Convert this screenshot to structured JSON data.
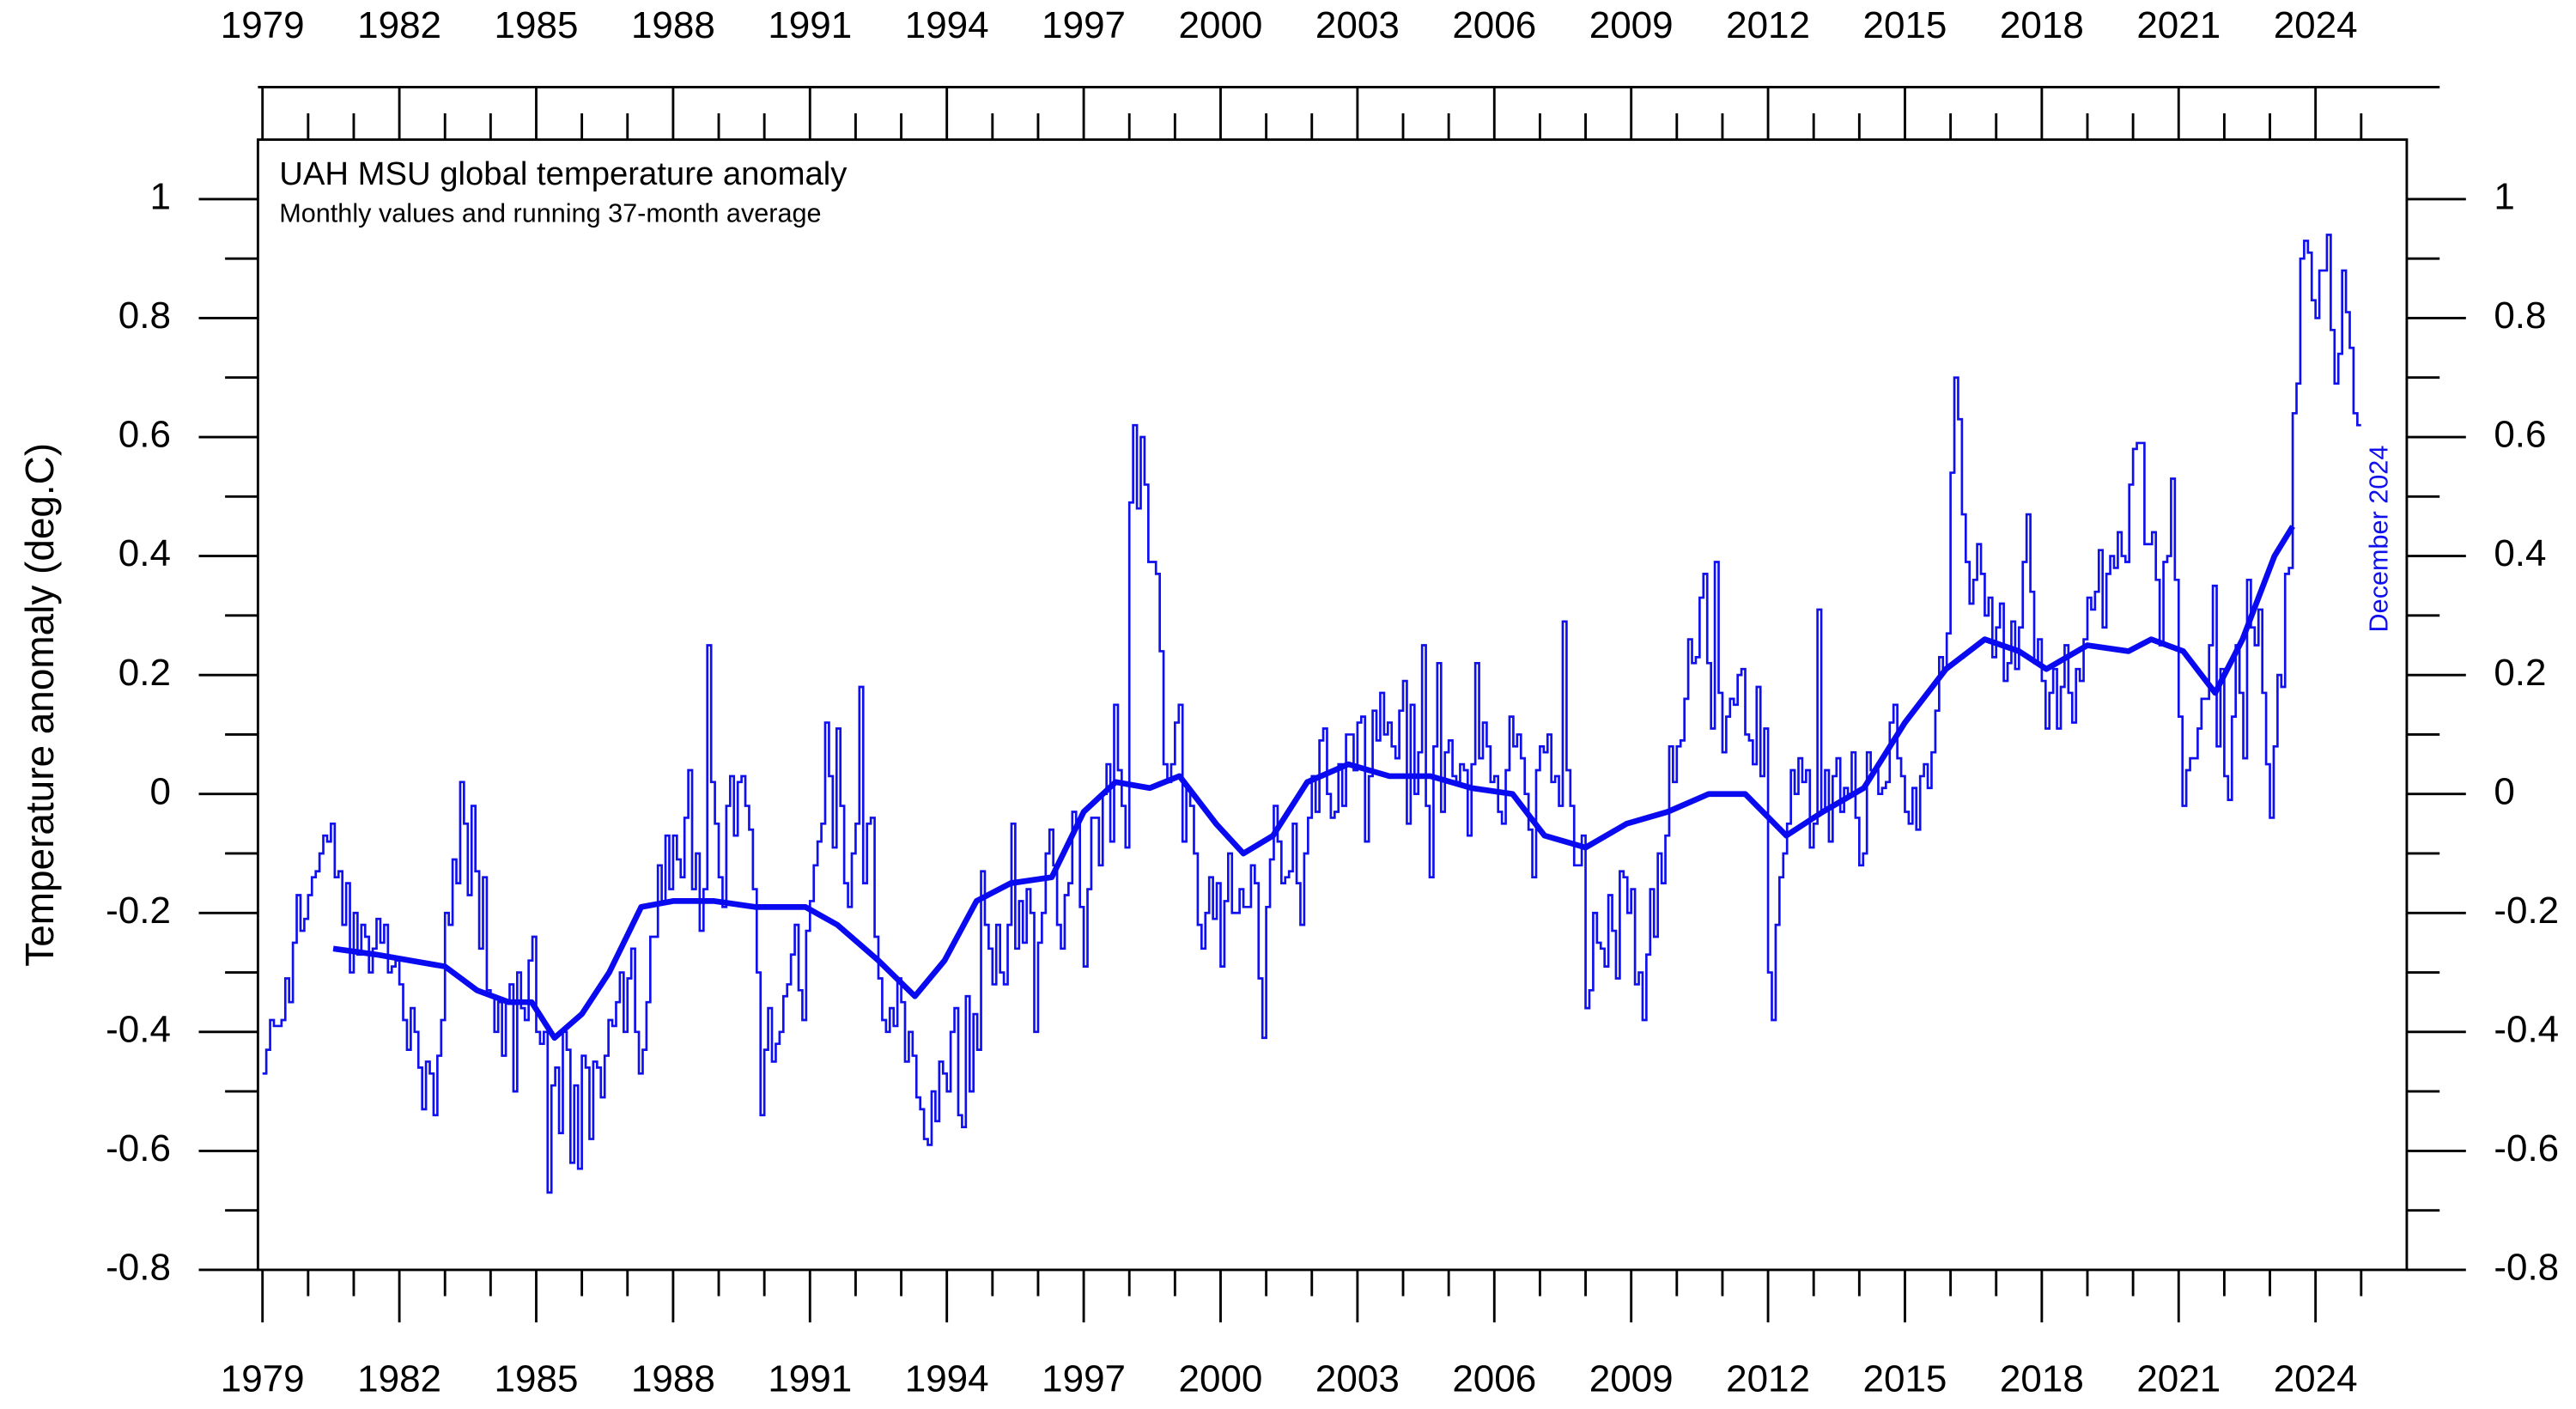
{
  "chart_data": {
    "type": "line",
    "title": "UAH MSU global temperature anomaly",
    "subtitle": "Monthly values and running 37-month average",
    "y_label": "Temperature anomaly (deg.C)",
    "annotation": "December 2024",
    "xlim": [
      1978.9,
      2026
    ],
    "xticks": [
      1979,
      1982,
      1985,
      1988,
      1991,
      1994,
      1997,
      2000,
      2003,
      2006,
      2009,
      2012,
      2015,
      2018,
      2021,
      2024
    ],
    "xticks_minor": [
      1980,
      1981,
      1983,
      1984,
      1986,
      1987,
      1989,
      1990,
      1992,
      1993,
      1995,
      1996,
      1998,
      1999,
      2001,
      2002,
      2004,
      2005,
      2007,
      2008,
      2010,
      2011,
      2013,
      2014,
      2016,
      2017,
      2019,
      2020,
      2022,
      2023,
      2025
    ],
    "ylim": [
      -0.8,
      1.1
    ],
    "yticks": [
      -0.8,
      -0.6,
      -0.4,
      -0.2,
      0,
      0.2,
      0.4,
      0.6,
      0.8,
      1
    ],
    "yticks_minor": [
      -0.7,
      -0.5,
      -0.3,
      -0.1,
      0.1,
      0.3,
      0.5,
      0.7,
      0.9
    ],
    "series": [
      {
        "color": "#1010ee",
        "years": [
          1979,
          1980,
          1981,
          1982,
          1983,
          1984,
          1985,
          1986,
          1987,
          1988,
          1989,
          1990,
          1991,
          1992,
          1993,
          1994,
          1995,
          1996,
          1997,
          1998,
          1999,
          2000,
          2001,
          2002,
          2003,
          2004,
          2005,
          2006,
          2007,
          2008,
          2009,
          2010,
          2011,
          2012,
          2013,
          2014,
          2015,
          2016,
          2017,
          2018,
          2019,
          2020,
          2021,
          2022,
          2023,
          2024
        ],
        "values": [
          [
            -0.47,
            -0.43,
            -0.38,
            -0.39,
            -0.39,
            -0.38,
            -0.31,
            -0.35,
            -0.25,
            -0.17,
            -0.23,
            -0.21
          ],
          [
            -0.17,
            -0.14,
            -0.13,
            -0.1,
            -0.07,
            -0.08,
            -0.05,
            -0.14,
            -0.13,
            -0.22,
            -0.15,
            -0.3
          ],
          [
            -0.2,
            -0.27,
            -0.22,
            -0.24,
            -0.3,
            -0.26,
            -0.21,
            -0.25,
            -0.22,
            -0.3,
            -0.29,
            -0.28
          ],
          [
            -0.32,
            -0.38,
            -0.43,
            -0.36,
            -0.4,
            -0.46,
            -0.53,
            -0.45,
            -0.47,
            -0.54,
            -0.44,
            -0.38
          ],
          [
            -0.2,
            -0.22,
            -0.11,
            -0.15,
            0.02,
            -0.05,
            -0.17,
            -0.02,
            -0.13,
            -0.26,
            -0.14,
            -0.33
          ],
          [
            -0.34,
            -0.4,
            -0.35,
            -0.44,
            -0.35,
            -0.32,
            -0.5,
            -0.3,
            -0.36,
            -0.38,
            -0.28,
            -0.24
          ],
          [
            -0.4,
            -0.42,
            -0.4,
            -0.67,
            -0.49,
            -0.46,
            -0.57,
            -0.4,
            -0.43,
            -0.62,
            -0.49,
            -0.63
          ],
          [
            -0.44,
            -0.46,
            -0.58,
            -0.45,
            -0.46,
            -0.51,
            -0.44,
            -0.38,
            -0.39,
            -0.35,
            -0.3,
            -0.4
          ],
          [
            -0.31,
            -0.26,
            -0.4,
            -0.47,
            -0.43,
            -0.35,
            -0.24,
            -0.24,
            -0.12,
            -0.18,
            -0.07,
            -0.16
          ],
          [
            -0.07,
            -0.11,
            -0.14,
            -0.04,
            0.04,
            -0.16,
            -0.1,
            -0.23,
            -0.16,
            0.25,
            0.02,
            -0.05
          ],
          [
            -0.14,
            -0.19,
            -0.02,
            0.03,
            -0.07,
            0.02,
            0.03,
            -0.02,
            -0.06,
            -0.16,
            -0.3,
            -0.54
          ],
          [
            -0.43,
            -0.36,
            -0.45,
            -0.42,
            -0.4,
            -0.34,
            -0.32,
            -0.27,
            -0.22,
            -0.33,
            -0.38,
            -0.23
          ],
          [
            -0.18,
            -0.12,
            -0.08,
            -0.05,
            0.12,
            0.03,
            -0.09,
            0.11,
            -0.02,
            -0.15,
            -0.19,
            -0.1
          ],
          [
            -0.05,
            0.18,
            -0.15,
            -0.05,
            -0.04,
            -0.24,
            -0.31,
            -0.38,
            -0.4,
            -0.36,
            -0.39,
            -0.31
          ],
          [
            -0.35,
            -0.45,
            -0.4,
            -0.44,
            -0.51,
            -0.53,
            -0.58,
            -0.59,
            -0.5,
            -0.55,
            -0.45,
            -0.47
          ],
          [
            -0.5,
            -0.4,
            -0.36,
            -0.54,
            -0.56,
            -0.34,
            -0.5,
            -0.37,
            -0.43,
            -0.13,
            -0.22,
            -0.26
          ],
          [
            -0.32,
            -0.22,
            -0.3,
            -0.32,
            -0.22,
            -0.05,
            -0.26,
            -0.18,
            -0.25,
            -0.16,
            -0.2,
            -0.4
          ],
          [
            -0.25,
            -0.2,
            -0.1,
            -0.06,
            -0.12,
            -0.22,
            -0.26,
            -0.17,
            -0.15,
            -0.03,
            -0.05,
            -0.19
          ],
          [
            -0.29,
            -0.16,
            -0.04,
            -0.04,
            -0.12,
            0.0,
            0.05,
            -0.08,
            0.15,
            0.04,
            -0.02,
            -0.09
          ],
          [
            0.49,
            0.62,
            0.48,
            0.6,
            0.52,
            0.39,
            0.39,
            0.37,
            0.24,
            0.05,
            0.02,
            0.05
          ],
          [
            0.12,
            0.15,
            -0.08,
            0.01,
            -0.02,
            -0.1,
            -0.22,
            -0.26,
            -0.2,
            -0.14,
            -0.21,
            -0.15
          ],
          [
            -0.29,
            -0.18,
            -0.1,
            -0.2,
            -0.2,
            -0.16,
            -0.19,
            -0.19,
            -0.12,
            -0.15,
            -0.31,
            -0.41
          ],
          [
            -0.19,
            -0.11,
            -0.02,
            -0.08,
            -0.15,
            -0.14,
            -0.13,
            -0.05,
            -0.15,
            -0.22,
            -0.1,
            -0.04
          ],
          [
            0.03,
            -0.03,
            0.09,
            0.11,
            0.0,
            -0.04,
            -0.03,
            0.05,
            -0.02,
            0.1,
            0.1,
            0.04
          ],
          [
            0.12,
            0.13,
            -0.08,
            0.03,
            0.14,
            0.09,
            0.17,
            0.1,
            0.12,
            0.08,
            0.06,
            0.14
          ],
          [
            0.19,
            -0.05,
            0.15,
            0.0,
            0.07,
            0.25,
            -0.02,
            -0.14,
            0.08,
            0.22,
            -0.03,
            0.07
          ],
          [
            0.09,
            0.03,
            0.02,
            0.05,
            0.04,
            -0.07,
            0.05,
            0.22,
            0.06,
            0.12,
            0.08,
            0.02
          ],
          [
            0.03,
            -0.03,
            -0.05,
            0.04,
            0.13,
            0.08,
            0.1,
            0.06,
            0.0,
            -0.06,
            -0.14,
            0.04
          ],
          [
            0.08,
            0.07,
            0.1,
            0.02,
            0.03,
            -0.02,
            0.29,
            0.04,
            -0.02,
            -0.12,
            -0.12,
            -0.07
          ],
          [
            -0.36,
            -0.33,
            -0.2,
            -0.25,
            -0.26,
            -0.29,
            -0.17,
            -0.23,
            -0.31,
            -0.13,
            -0.14,
            -0.2
          ],
          [
            -0.16,
            -0.32,
            -0.3,
            -0.38,
            -0.27,
            -0.16,
            -0.24,
            -0.1,
            -0.15,
            -0.07,
            0.08,
            0.02
          ],
          [
            0.08,
            0.09,
            0.16,
            0.26,
            0.22,
            0.23,
            0.33,
            0.37,
            0.22,
            0.11,
            0.39,
            0.17
          ],
          [
            0.07,
            0.13,
            0.16,
            0.15,
            0.2,
            0.21,
            0.1,
            0.09,
            0.05,
            0.18,
            0.03,
            0.11
          ],
          [
            -0.3,
            -0.38,
            -0.22,
            -0.14,
            -0.1,
            -0.05,
            0.04,
            0.0,
            0.06,
            0.02,
            0.04,
            -0.09
          ],
          [
            -0.05,
            0.31,
            -0.03,
            0.04,
            -0.08,
            0.03,
            0.06,
            -0.03,
            0.01,
            0.0,
            0.07,
            -0.04
          ],
          [
            -0.12,
            -0.1,
            0.07,
            0.04,
            0.04,
            0.0,
            0.01,
            0.02,
            0.12,
            0.15,
            0.06,
            0.03
          ],
          [
            -0.03,
            -0.05,
            0.01,
            -0.06,
            0.03,
            0.05,
            0.01,
            0.07,
            0.14,
            0.23,
            0.21,
            0.27
          ],
          [
            0.54,
            0.7,
            0.63,
            0.47,
            0.39,
            0.32,
            0.36,
            0.42,
            0.37,
            0.3,
            0.33,
            0.23
          ],
          [
            0.28,
            0.32,
            0.19,
            0.22,
            0.29,
            0.21,
            0.28,
            0.39,
            0.47,
            0.34,
            0.22,
            0.26
          ],
          [
            0.19,
            0.11,
            0.17,
            0.21,
            0.11,
            0.18,
            0.25,
            0.17,
            0.12,
            0.21,
            0.19,
            0.26
          ],
          [
            0.33,
            0.31,
            0.34,
            0.41,
            0.28,
            0.37,
            0.4,
            0.38,
            0.44,
            0.4,
            0.39,
            0.52
          ],
          [
            0.58,
            0.59,
            0.59,
            0.42,
            0.42,
            0.44,
            0.36,
            0.25,
            0.39,
            0.4,
            0.53,
            0.36
          ],
          [
            0.13,
            -0.02,
            0.04,
            0.06,
            0.06,
            0.11,
            0.16,
            0.16,
            0.25,
            0.35,
            0.08,
            0.21
          ],
          [
            0.03,
            -0.01,
            0.13,
            0.25,
            0.17,
            0.06,
            0.36,
            0.28,
            0.25,
            0.31,
            0.17,
            0.05
          ],
          [
            -0.04,
            0.08,
            0.2,
            0.18,
            0.37,
            0.38,
            0.64,
            0.69,
            0.9,
            0.93,
            0.91,
            0.83
          ],
          [
            0.8,
            0.88,
            0.88,
            0.94,
            0.78,
            0.69,
            0.74,
            0.88,
            0.81,
            0.75,
            0.64,
            0.62
          ]
        ]
      },
      {
        "color": "#0a0af0",
        "x": [
          1980.55,
          1981.5,
          1982.24,
          1983.0,
          1983.7,
          1984.4,
          1984.9,
          1985.4,
          1986.0,
          1986.6,
          1987.3,
          1988.0,
          1988.9,
          1989.8,
          1990.9,
          1991.6,
          1992.5,
          1993.3,
          1993.95,
          1994.65,
          1995.4,
          1996.3,
          1997.0,
          1997.7,
          1998.45,
          1999.1,
          1999.9,
          2000.5,
          2001.15,
          2001.9,
          2002.8,
          2003.7,
          2004.6,
          2005.5,
          2006.4,
          2007.1,
          2008.0,
          2008.9,
          2009.8,
          2010.7,
          2011.5,
          2012.4,
          2013.2,
          2014.1,
          2015.0,
          2015.9,
          2016.75,
          2017.5,
          2018.1,
          2019.0,
          2019.9,
          2020.4,
          2021.1,
          2021.8,
          2022.4,
          2023.1,
          2023.5
        ],
        "values": [
          -0.26,
          -0.27,
          -0.28,
          -0.29,
          -0.33,
          -0.35,
          -0.35,
          -0.41,
          -0.37,
          -0.3,
          -0.19,
          -0.18,
          -0.18,
          -0.19,
          -0.19,
          -0.22,
          -0.28,
          -0.34,
          -0.28,
          -0.18,
          -0.15,
          -0.14,
          -0.03,
          0.02,
          0.01,
          0.03,
          -0.05,
          -0.1,
          -0.07,
          0.02,
          0.05,
          0.03,
          0.03,
          0.01,
          0.0,
          -0.07,
          -0.09,
          -0.05,
          -0.03,
          0.0,
          0.0,
          -0.07,
          -0.03,
          0.01,
          0.12,
          0.21,
          0.26,
          0.24,
          0.21,
          0.25,
          0.24,
          0.26,
          0.24,
          0.17,
          0.26,
          0.4,
          0.45
        ]
      }
    ]
  }
}
